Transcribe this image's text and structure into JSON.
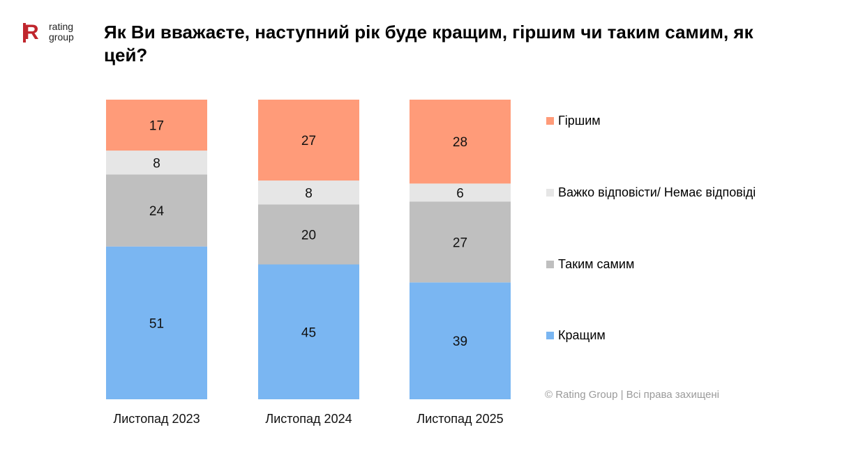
{
  "brand": {
    "logo_letter": "R",
    "logo_line1": "rating",
    "logo_line2": "group"
  },
  "header": {
    "title": "Як Ви вважаєте, наступний рік буде кращим, гіршим чи таким самим, як цей?"
  },
  "footer": {
    "copyright": "© Rating Group | Всі права захищені"
  },
  "chart_data": {
    "type": "bar",
    "stacked": true,
    "title": "Як Ви вважаєте, наступний рік буде кращим, гіршим чи таким самим, як цей?",
    "xlabel": "",
    "ylabel": "",
    "ylim": [
      0,
      100
    ],
    "grid": false,
    "legend_position": "right",
    "categories": [
      "Листопад 2023",
      "Листопад 2024",
      "Листопад 2025"
    ],
    "series": [
      {
        "name": "Кращим",
        "color": "#7ab6f2",
        "values": [
          51,
          45,
          39
        ]
      },
      {
        "name": "Таким самим",
        "color": "#bfbfbf",
        "values": [
          24,
          20,
          27
        ]
      },
      {
        "name": "Важко відповісти/ Немає відповіді",
        "color": "#e6e6e6",
        "values": [
          8,
          8,
          6
        ]
      },
      {
        "name": "Гіршим",
        "color": "#ff9b79",
        "values": [
          17,
          27,
          28
        ]
      }
    ],
    "legend_order": [
      "Гіршим",
      "Важко відповісти/ Немає відповіді",
      "Таким самим",
      "Кращим"
    ]
  }
}
